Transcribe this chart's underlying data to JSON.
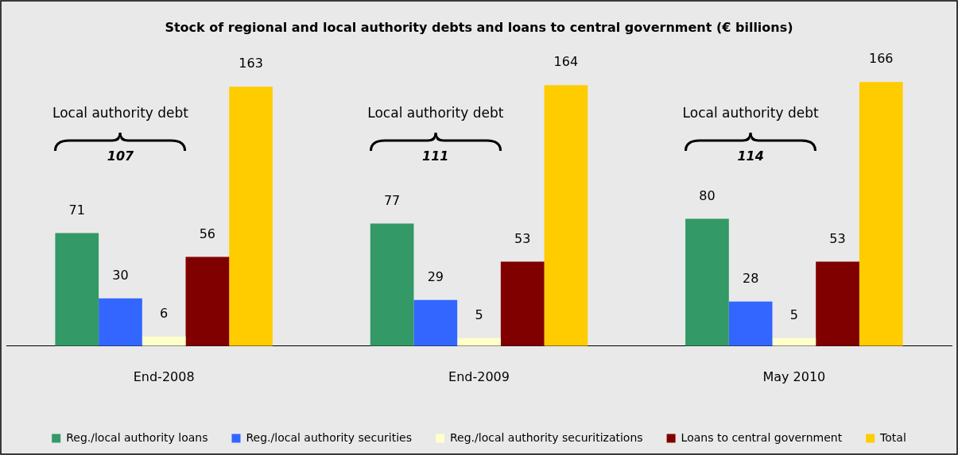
{
  "chart_data": {
    "type": "bar",
    "title": "Stock of regional and local authority debts and loans to central government (€ billions)",
    "categories": [
      "End-2008",
      "End-2009",
      "May 2010"
    ],
    "series": [
      {
        "name": "Reg./local authority loans",
        "color": "#339966",
        "values": [
          71,
          77,
          80
        ]
      },
      {
        "name": "Reg./local authority securities",
        "color": "#3366ff",
        "values": [
          30,
          29,
          28
        ]
      },
      {
        "name": "Reg./local authority securitizations",
        "color": "#ffffcc",
        "values": [
          6,
          5,
          5
        ]
      },
      {
        "name": "Loans to central government",
        "color": "#800000",
        "values": [
          56,
          53,
          53
        ]
      },
      {
        "name": "Total",
        "color": "#ffcc00",
        "values": [
          163,
          164,
          166
        ]
      }
    ],
    "annotations": [
      "Local authority debt",
      "107",
      "Local authority debt",
      "111",
      "Local authority debt",
      "114"
    ],
    "data_labels": true,
    "grid": false,
    "legend": "bottom",
    "tick_labels": "x"
  }
}
